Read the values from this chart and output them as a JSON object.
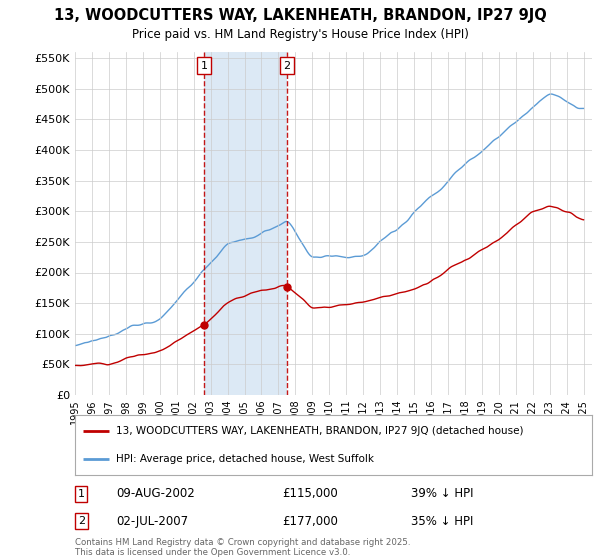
{
  "title": "13, WOODCUTTERS WAY, LAKENHEATH, BRANDON, IP27 9JQ",
  "subtitle": "Price paid vs. HM Land Registry's House Price Index (HPI)",
  "ylim": [
    0,
    560000
  ],
  "yticks": [
    0,
    50000,
    100000,
    150000,
    200000,
    250000,
    300000,
    350000,
    400000,
    450000,
    500000,
    550000
  ],
  "ytick_labels": [
    "£0",
    "£50K",
    "£100K",
    "£150K",
    "£200K",
    "£250K",
    "£300K",
    "£350K",
    "£400K",
    "£450K",
    "£500K",
    "£550K"
  ],
  "hpi_color": "#5b9bd5",
  "hpi_fill_color": "#dce9f5",
  "price_color": "#c00000",
  "vline_color": "#c00000",
  "sale1_year": 2002.625,
  "sale1_price": 115000,
  "sale1_date": "09-AUG-2002",
  "sale1_price_str": "£115,000",
  "sale1_note": "39% ↓ HPI",
  "sale2_year": 2007.5,
  "sale2_price": 177000,
  "sale2_date": "02-JUL-2007",
  "sale2_price_str": "£177,000",
  "sale2_note": "35% ↓ HPI",
  "legend_label_price": "13, WOODCUTTERS WAY, LAKENHEATH, BRANDON, IP27 9JQ (detached house)",
  "legend_label_hpi": "HPI: Average price, detached house, West Suffolk",
  "footer": "Contains HM Land Registry data © Crown copyright and database right 2025.\nThis data is licensed under the Open Government Licence v3.0.",
  "background_color": "#ffffff",
  "grid_color": "#cccccc"
}
